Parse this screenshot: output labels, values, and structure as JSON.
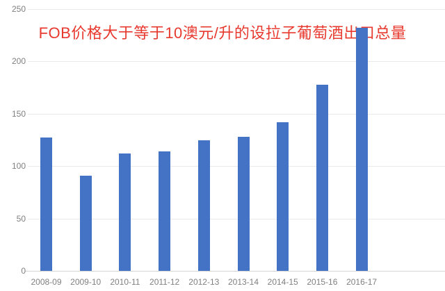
{
  "chart_data": {
    "type": "bar",
    "title": "FOB价格大于等于10澳元/升的设拉子葡萄酒出口总量",
    "categories": [
      "2008-09",
      "2009-10",
      "2010-11",
      "2011-12",
      "2012-13",
      "2013-14",
      "2014-15",
      "2015-16",
      "2016-17"
    ],
    "values": [
      127,
      91,
      112,
      114,
      125,
      128,
      142,
      178,
      232
    ],
    "xlabel": "",
    "ylabel": "",
    "ylim": [
      0,
      250
    ],
    "yticks": [
      0,
      50,
      100,
      150,
      200,
      250
    ],
    "grid": "horizontal",
    "legend_position": "none",
    "colors": {
      "bar": "#4472c4",
      "title": "#e8392f",
      "axis_text": "#7f7f7f",
      "gridline": "#e9e9e9",
      "axis_line": "#d5d5d5",
      "background": "#ffffff"
    }
  }
}
